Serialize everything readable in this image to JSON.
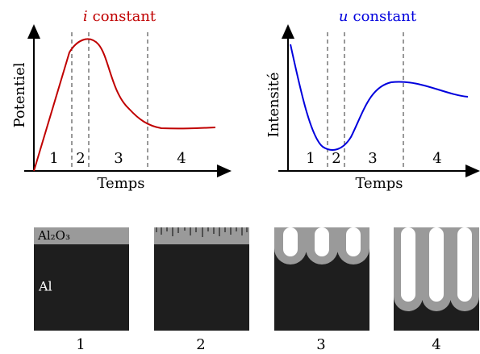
{
  "plots": [
    {
      "title": {
        "variable": "i",
        "label": "constant"
      },
      "y_label": "Potentiel",
      "x_label": "Temps",
      "phases": [
        "1",
        "2",
        "3",
        "4"
      ]
    },
    {
      "title": {
        "variable": "u",
        "label": "constant"
      },
      "y_label": "Intensité",
      "x_label": "Temps",
      "phases": [
        "1",
        "2",
        "3",
        "4"
      ]
    }
  ],
  "panels": {
    "oxide_label": "Al₂O₃",
    "metal_label": "Al",
    "captions": [
      "1",
      "2",
      "3",
      "4"
    ]
  }
}
